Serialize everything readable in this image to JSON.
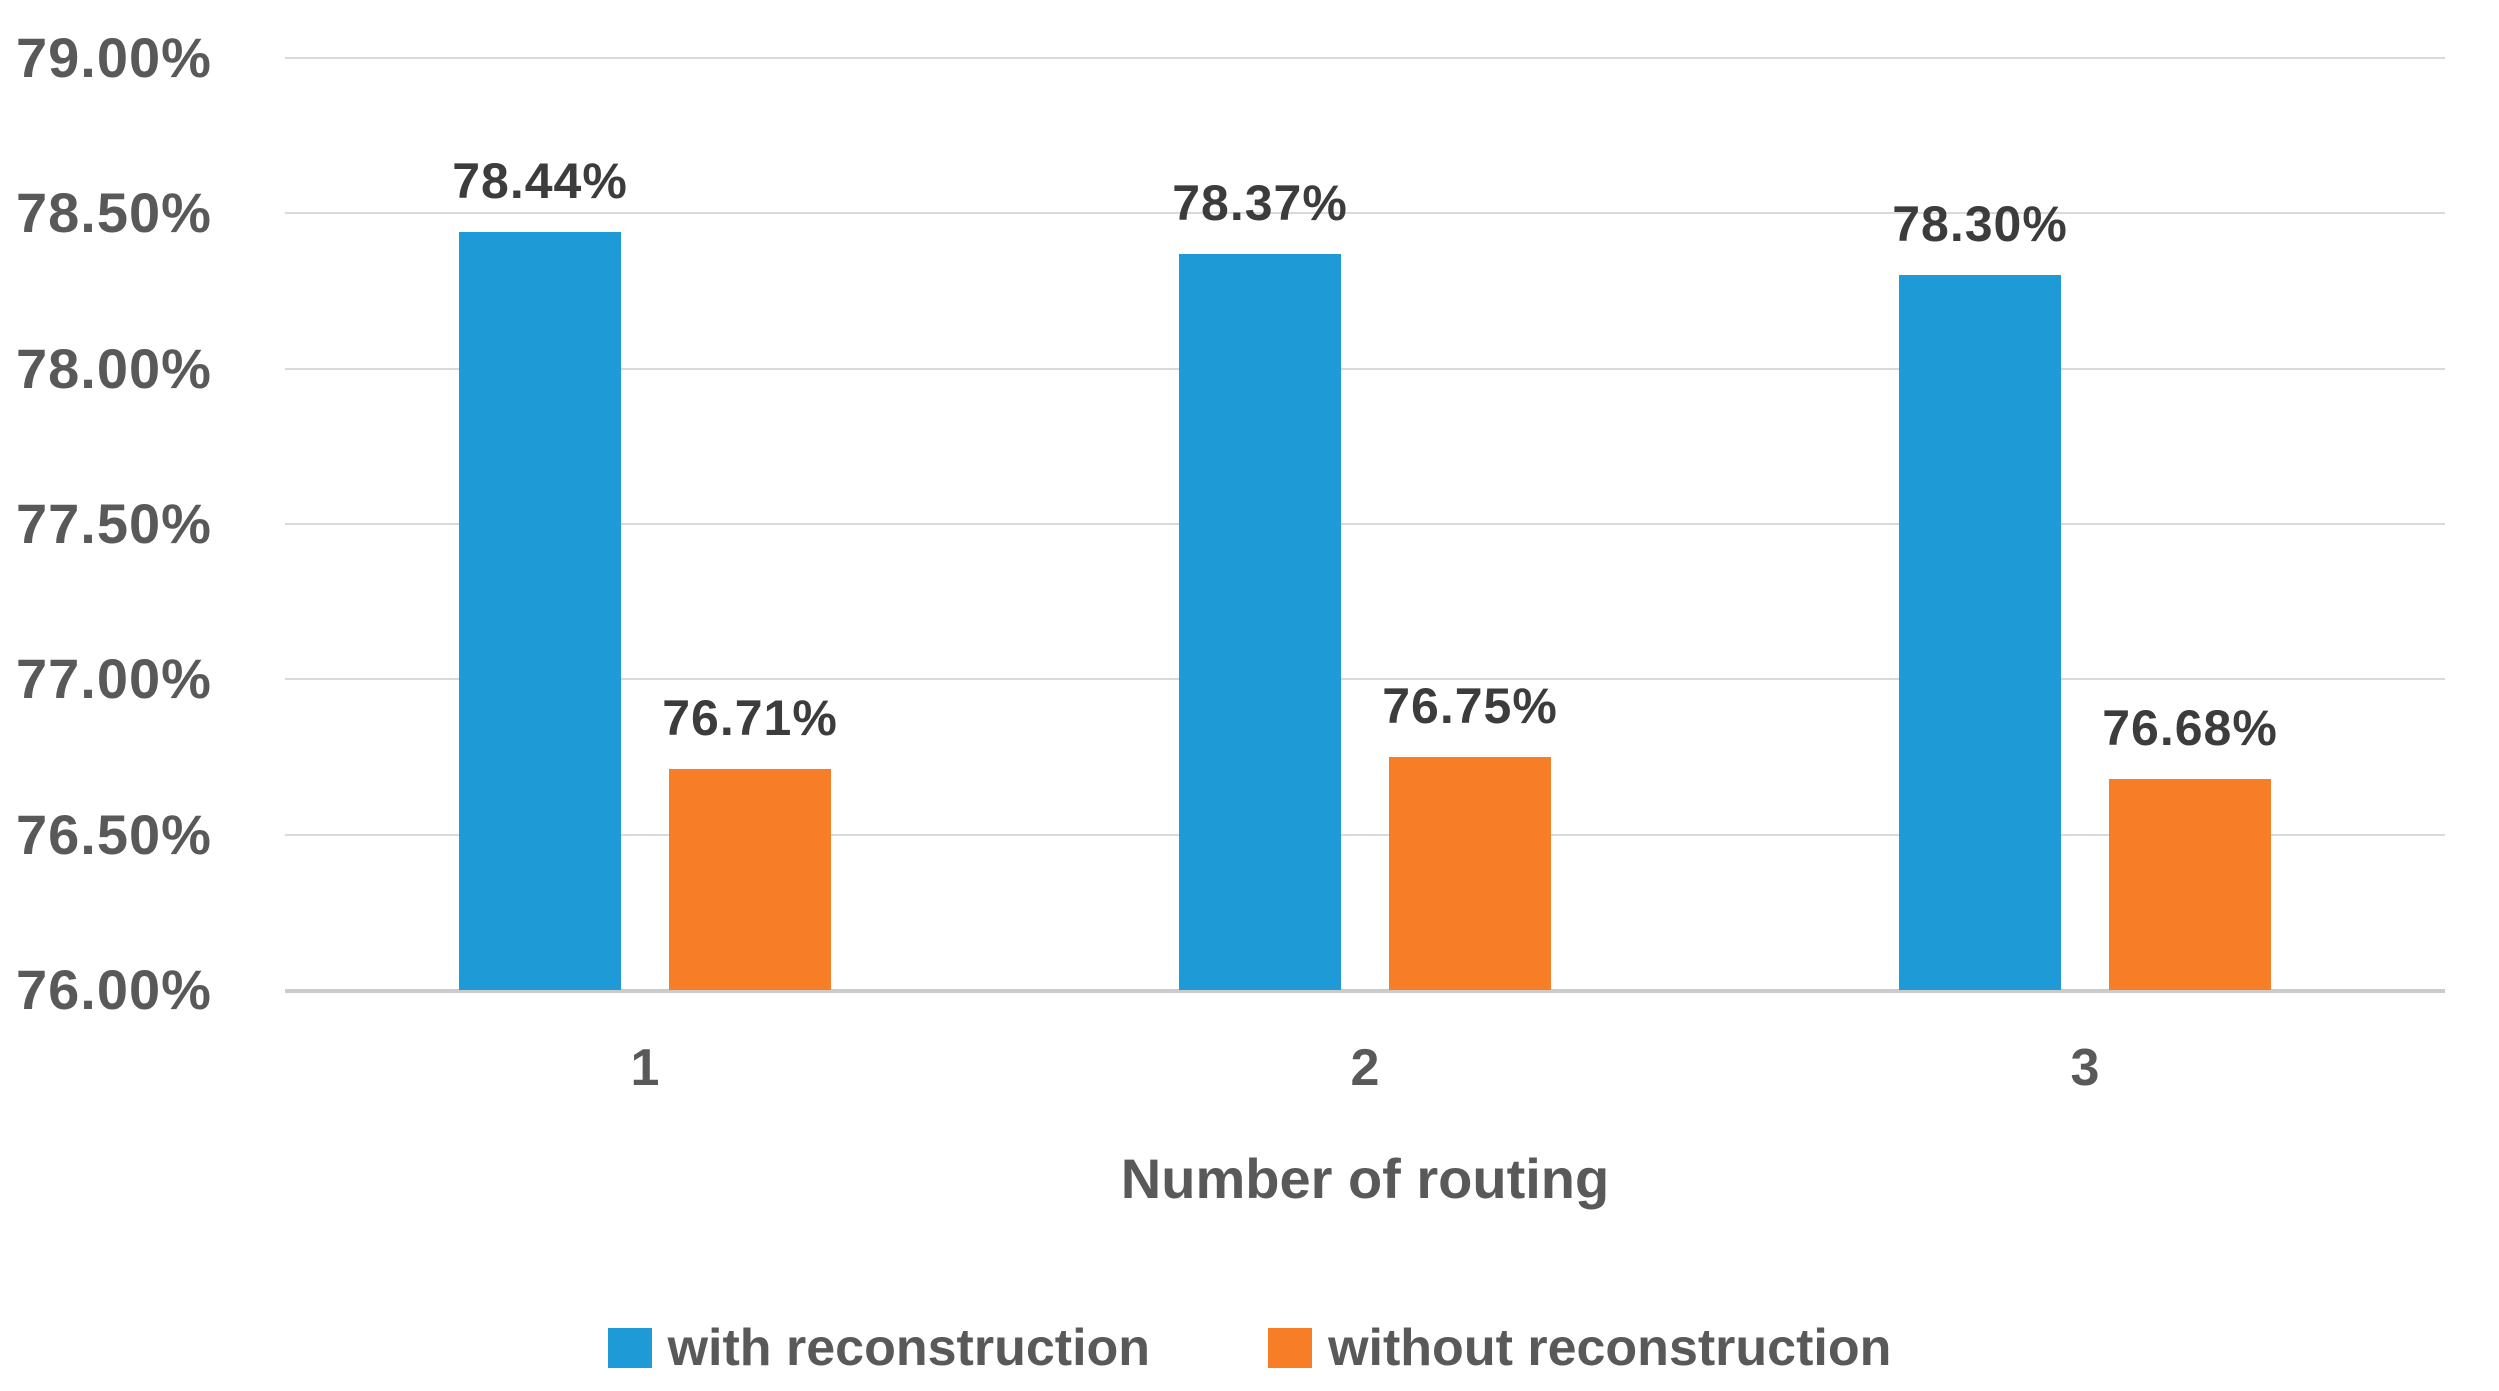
{
  "chart_data": {
    "type": "bar",
    "title": "",
    "categories": [
      "1",
      "2",
      "3"
    ],
    "series": [
      {
        "name": "with reconstruction",
        "color": "#1E9BD7",
        "values": [
          78.44,
          78.37,
          78.3
        ],
        "data_labels": [
          "78.44%",
          "78.37%",
          "78.30%"
        ]
      },
      {
        "name": "without reconstruction",
        "color": "#F77E27",
        "values": [
          76.71,
          76.75,
          76.68
        ],
        "data_labels": [
          "76.71%",
          "76.75%",
          "76.68%"
        ]
      }
    ],
    "xlabel": "Number of routing",
    "ylabel": "",
    "ylim": [
      76.0,
      79.0
    ],
    "ytick_step": 0.5,
    "yticks": [
      {
        "value": 79.0,
        "label": "79.00%"
      },
      {
        "value": 78.5,
        "label": "78.50%"
      },
      {
        "value": 78.0,
        "label": "78.00%"
      },
      {
        "value": 77.5,
        "label": "77.50%"
      },
      {
        "value": 77.0,
        "label": "77.00%"
      },
      {
        "value": 76.5,
        "label": "76.50%"
      },
      {
        "value": 76.0,
        "label": "76.00%"
      }
    ],
    "grid": true,
    "legend_position": "bottom"
  },
  "colors": {
    "grid_line": "#D9D9D9",
    "axis_line": "#CBCBCB",
    "tick_text": "#595959",
    "data_label_text": "#3C3C3C",
    "background": "#FFFFFF"
  }
}
